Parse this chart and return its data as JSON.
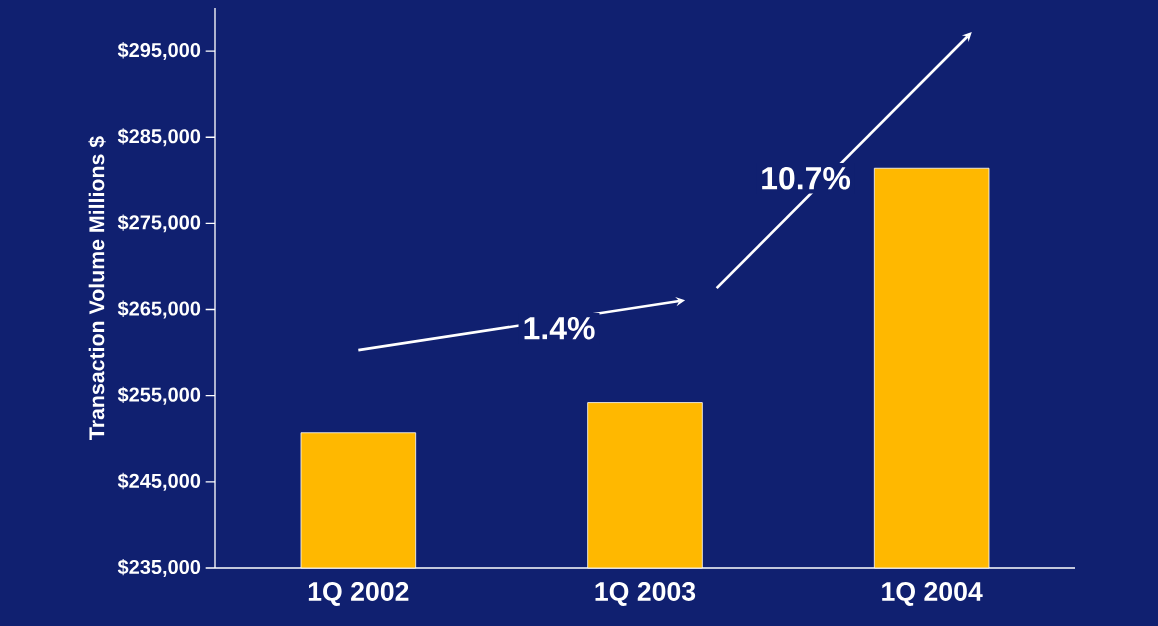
{
  "chart_data": {
    "type": "bar",
    "ylabel": "Transaction Volume Millions $",
    "categories": [
      "1Q 2002",
      "1Q 2003",
      "1Q 2004"
    ],
    "values": [
      250700,
      254200,
      281400
    ],
    "color": "#ffb800",
    "ylim": [
      235000,
      300000
    ],
    "yticks": [
      {
        "value": 235000,
        "label": "$235,000"
      },
      {
        "value": 245000,
        "label": "$245,000"
      },
      {
        "value": 255000,
        "label": "$255,000"
      },
      {
        "value": 265000,
        "label": "$265,000"
      },
      {
        "value": 275000,
        "label": "$275,000"
      },
      {
        "value": 285000,
        "label": "$285,000"
      },
      {
        "value": 295000,
        "label": "$295,000"
      }
    ],
    "annotations": [
      "1.4%",
      "10.7%"
    ]
  }
}
